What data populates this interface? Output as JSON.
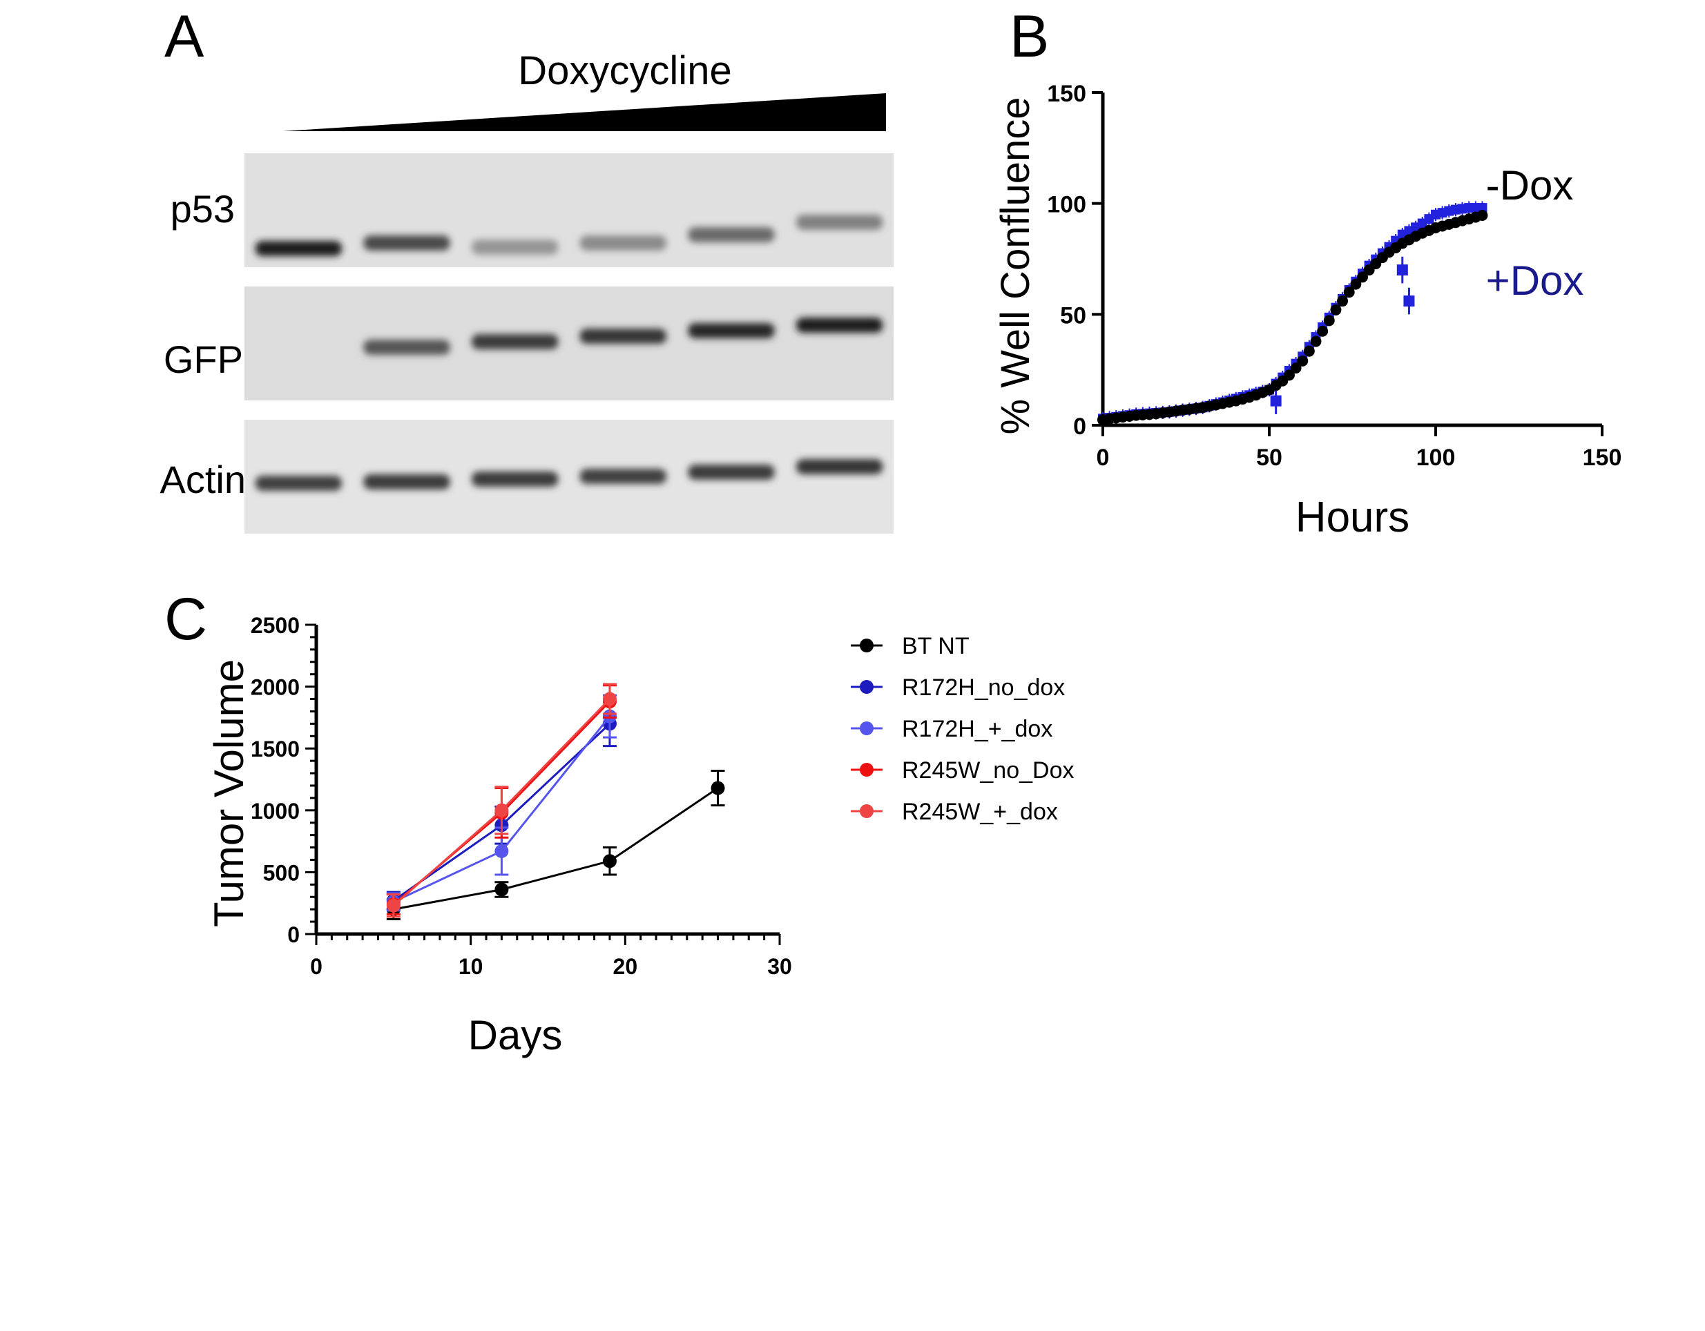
{
  "panels": {
    "a": {
      "letter": "A",
      "treatment_label": "Doxycycline",
      "lane_count": 6,
      "blots": [
        {
          "label": "p53",
          "band_intensity": [
            0.95,
            0.75,
            0.4,
            0.45,
            0.6,
            0.5
          ]
        },
        {
          "label": "GFP",
          "band_intensity": [
            0.0,
            0.7,
            0.82,
            0.85,
            0.92,
            0.95
          ]
        },
        {
          "label": "Actin",
          "band_intensity": [
            0.8,
            0.82,
            0.82,
            0.8,
            0.82,
            0.85
          ]
        }
      ]
    },
    "b": {
      "letter": "B"
    },
    "c": {
      "letter": "C"
    }
  },
  "chart_data": [
    {
      "id": "b",
      "type": "scatter",
      "xlabel": "Hours",
      "ylabel": "% Well Confluence",
      "xlim": [
        0,
        150
      ],
      "ylim": [
        0,
        150
      ],
      "xticks": [
        0,
        50,
        100,
        150
      ],
      "yticks": [
        0,
        50,
        100,
        150
      ],
      "annotations": [
        {
          "text": "-Dox",
          "color": "#000000",
          "near_x": 113,
          "near_y": 108
        },
        {
          "text": "+Dox",
          "color": "#1a1a8c",
          "near_x": 113,
          "near_y": 65
        }
      ],
      "series": [
        {
          "color": "#2222dd",
          "marker": "square",
          "x": [
            0,
            5,
            10,
            15,
            20,
            25,
            30,
            35,
            40,
            45,
            50,
            55,
            60,
            65,
            70,
            75,
            80,
            85,
            90,
            95,
            100,
            105,
            110,
            115
          ],
          "y": [
            3,
            4,
            5,
            5.5,
            6,
            7,
            8,
            10,
            12,
            14,
            16,
            23,
            31,
            42,
            53,
            63,
            72,
            79,
            86,
            90,
            95,
            97,
            98,
            98
          ],
          "outliers": [
            {
              "x": 52,
              "y": 11
            },
            {
              "x": 90,
              "y": 70
            },
            {
              "x": 92,
              "y": 56
            }
          ]
        },
        {
          "color": "#000000",
          "marker": "circle",
          "x": [
            0,
            5,
            10,
            15,
            20,
            25,
            30,
            35,
            40,
            45,
            50,
            55,
            60,
            65,
            70,
            75,
            80,
            85,
            90,
            95,
            100,
            105,
            110,
            115
          ],
          "y": [
            2.5,
            3.5,
            4.5,
            5,
            6,
            7,
            8,
            9.5,
            11,
            13,
            16,
            21,
            29,
            40,
            52,
            62,
            70,
            77,
            82,
            86,
            89,
            91,
            93,
            95
          ]
        }
      ]
    },
    {
      "id": "c",
      "type": "line",
      "xlabel": "Days",
      "ylabel": "Tumor Volume",
      "xlim": [
        0,
        30
      ],
      "ylim": [
        0,
        2500
      ],
      "xticks": [
        0,
        10,
        20,
        30
      ],
      "yticks": [
        0,
        500,
        1000,
        1500,
        2000,
        2500
      ],
      "legend": "right",
      "series": [
        {
          "name": "BT NT",
          "color": "#000000",
          "x": [
            5,
            12,
            19,
            26
          ],
          "y": [
            200,
            360,
            590,
            1180
          ],
          "err": [
            80,
            60,
            110,
            140
          ]
        },
        {
          "name": "R172H_no_dox",
          "color": "#1c1cbf",
          "x": [
            5,
            12,
            19
          ],
          "y": [
            270,
            880,
            1700
          ],
          "err": [
            70,
            150,
            180
          ]
        },
        {
          "name": "R172H_+_dox",
          "color": "#5555ee",
          "x": [
            5,
            12,
            19
          ],
          "y": [
            260,
            670,
            1760
          ],
          "err": [
            70,
            190,
            170
          ]
        },
        {
          "name": "R245W_no_Dox",
          "color": "#ee1111",
          "x": [
            5,
            12,
            19
          ],
          "y": [
            240,
            980,
            1880
          ],
          "err": [
            80,
            200,
            130
          ]
        },
        {
          "name": "R245W_+_dox",
          "color": "#ee4444",
          "x": [
            5,
            12,
            19
          ],
          "y": [
            230,
            1000,
            1900
          ],
          "err": [
            90,
            190,
            120
          ]
        }
      ]
    }
  ]
}
